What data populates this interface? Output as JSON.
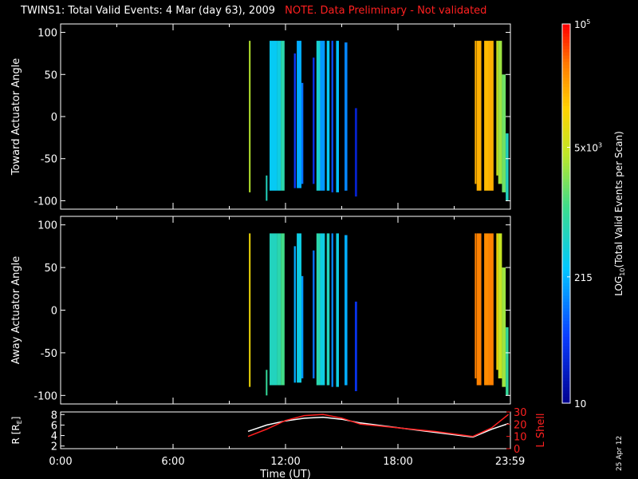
{
  "title": {
    "main": "TWINS1: Total Valid Events:  4 Mar (day  63), 2009",
    "note": "NOTE. Data Preliminary - Not validated"
  },
  "colors": {
    "background": "#000000",
    "axis": "#ffffff",
    "note": "#ff2020",
    "r_line": "#ffffff",
    "lshell_line": "#ff2020"
  },
  "chart_data": [
    {
      "type": "heatmap",
      "panel": "top",
      "ylabel": "Toward Actuator Angle",
      "ylim": [
        -110,
        110
      ],
      "yticks": [
        100,
        50,
        0,
        -50,
        -100
      ],
      "xlim_hours": [
        0,
        24
      ],
      "xticks_hours": [
        0,
        6,
        12,
        18,
        23.983
      ],
      "note": "vertical scan stripes; value = log10 total valid events per scan",
      "stripes": [
        {
          "t0": 10.05,
          "t1": 10.13,
          "ylo": -90,
          "yhi": 90,
          "log": 3.6
        },
        {
          "t0": 10.95,
          "t1": 11.0,
          "ylo": -100,
          "yhi": -70,
          "log": 2.8
        },
        {
          "t0": 11.15,
          "t1": 11.55,
          "ylo": -88,
          "yhi": 90,
          "log": 2.5
        },
        {
          "t0": 11.55,
          "t1": 11.75,
          "ylo": -88,
          "yhi": 90,
          "log": 2.6
        },
        {
          "t0": 11.75,
          "t1": 11.95,
          "ylo": -88,
          "yhi": 90,
          "log": 2.9
        },
        {
          "t0": 12.45,
          "t1": 12.55,
          "ylo": -85,
          "yhi": 75,
          "log": 1.7
        },
        {
          "t0": 12.6,
          "t1": 12.85,
          "ylo": -85,
          "yhi": 90,
          "log": 2.3
        },
        {
          "t0": 12.85,
          "t1": 12.95,
          "ylo": -80,
          "yhi": 40,
          "log": 2.0
        },
        {
          "t0": 13.45,
          "t1": 13.55,
          "ylo": -80,
          "yhi": 70,
          "log": 1.6
        },
        {
          "t0": 13.65,
          "t1": 13.85,
          "ylo": -88,
          "yhi": 90,
          "log": 2.7
        },
        {
          "t0": 13.85,
          "t1": 14.1,
          "ylo": -88,
          "yhi": 90,
          "log": 2.2
        },
        {
          "t0": 14.2,
          "t1": 14.35,
          "ylo": -88,
          "yhi": 90,
          "log": 2.5
        },
        {
          "t0": 14.45,
          "t1": 14.55,
          "ylo": -90,
          "yhi": 90,
          "log": 1.8
        },
        {
          "t0": 14.7,
          "t1": 14.85,
          "ylo": -90,
          "yhi": 90,
          "log": 2.4
        },
        {
          "t0": 15.15,
          "t1": 15.3,
          "ylo": -88,
          "yhi": 88,
          "log": 2.1
        },
        {
          "t0": 15.7,
          "t1": 15.82,
          "ylo": -95,
          "yhi": 10,
          "log": 1.4
        },
        {
          "t0": 22.1,
          "t1": 22.15,
          "ylo": -80,
          "yhi": 90,
          "log": 4.3
        },
        {
          "t0": 22.2,
          "t1": 22.45,
          "ylo": -88,
          "yhi": 90,
          "log": 4.3
        },
        {
          "t0": 22.6,
          "t1": 22.85,
          "ylo": -88,
          "yhi": 90,
          "log": 4.25
        },
        {
          "t0": 22.85,
          "t1": 23.1,
          "ylo": -88,
          "yhi": 90,
          "log": 4.3
        },
        {
          "t0": 23.25,
          "t1": 23.35,
          "ylo": -70,
          "yhi": 90,
          "log": 3.7
        },
        {
          "t0": 23.35,
          "t1": 23.55,
          "ylo": -80,
          "yhi": 90,
          "log": 3.5
        },
        {
          "t0": 23.55,
          "t1": 23.75,
          "ylo": -90,
          "yhi": 50,
          "log": 3.3
        },
        {
          "t0": 23.75,
          "t1": 23.9,
          "ylo": -100,
          "yhi": -20,
          "log": 2.8
        }
      ]
    },
    {
      "type": "heatmap",
      "panel": "middle",
      "ylabel": "Away Actuator Angle",
      "ylim": [
        -110,
        110
      ],
      "yticks": [
        100,
        50,
        0,
        -50,
        -100
      ],
      "xlim_hours": [
        0,
        24
      ],
      "stripes": [
        {
          "t0": 10.05,
          "t1": 10.13,
          "ylo": -90,
          "yhi": 90,
          "log": 4.0
        },
        {
          "t0": 10.95,
          "t1": 11.0,
          "ylo": -100,
          "yhi": -70,
          "log": 3.0
        },
        {
          "t0": 11.15,
          "t1": 11.55,
          "ylo": -88,
          "yhi": 90,
          "log": 2.8
        },
        {
          "t0": 11.55,
          "t1": 11.75,
          "ylo": -88,
          "yhi": 90,
          "log": 2.9
        },
        {
          "t0": 11.75,
          "t1": 11.95,
          "ylo": -88,
          "yhi": 90,
          "log": 3.1
        },
        {
          "t0": 12.45,
          "t1": 12.55,
          "ylo": -85,
          "yhi": 75,
          "log": 2.3
        },
        {
          "t0": 12.6,
          "t1": 12.85,
          "ylo": -85,
          "yhi": 90,
          "log": 2.6
        },
        {
          "t0": 12.85,
          "t1": 12.95,
          "ylo": -80,
          "yhi": 40,
          "log": 2.2
        },
        {
          "t0": 13.45,
          "t1": 13.55,
          "ylo": -80,
          "yhi": 70,
          "log": 2.0
        },
        {
          "t0": 13.65,
          "t1": 13.85,
          "ylo": -88,
          "yhi": 90,
          "log": 2.9
        },
        {
          "t0": 13.85,
          "t1": 14.1,
          "ylo": -88,
          "yhi": 90,
          "log": 2.6
        },
        {
          "t0": 14.2,
          "t1": 14.35,
          "ylo": -88,
          "yhi": 90,
          "log": 2.8
        },
        {
          "t0": 14.45,
          "t1": 14.55,
          "ylo": -90,
          "yhi": 90,
          "log": 2.1
        },
        {
          "t0": 14.7,
          "t1": 14.85,
          "ylo": -90,
          "yhi": 90,
          "log": 2.6
        },
        {
          "t0": 15.15,
          "t1": 15.3,
          "ylo": -88,
          "yhi": 88,
          "log": 2.3
        },
        {
          "t0": 15.7,
          "t1": 15.82,
          "ylo": -95,
          "yhi": 10,
          "log": 1.6
        },
        {
          "t0": 22.1,
          "t1": 22.15,
          "ylo": -80,
          "yhi": 90,
          "log": 4.55
        },
        {
          "t0": 22.2,
          "t1": 22.45,
          "ylo": -88,
          "yhi": 90,
          "log": 4.55
        },
        {
          "t0": 22.6,
          "t1": 22.85,
          "ylo": -88,
          "yhi": 90,
          "log": 4.5
        },
        {
          "t0": 22.85,
          "t1": 23.1,
          "ylo": -88,
          "yhi": 90,
          "log": 4.55
        },
        {
          "t0": 23.25,
          "t1": 23.35,
          "ylo": -70,
          "yhi": 90,
          "log": 4.0
        },
        {
          "t0": 23.35,
          "t1": 23.55,
          "ylo": -80,
          "yhi": 90,
          "log": 3.7
        },
        {
          "t0": 23.55,
          "t1": 23.75,
          "ylo": -90,
          "yhi": 50,
          "log": 3.5
        },
        {
          "t0": 23.75,
          "t1": 23.9,
          "ylo": -100,
          "yhi": -20,
          "log": 3.0
        }
      ]
    },
    {
      "type": "line",
      "panel": "bottom",
      "ylabel_left": "R [RE]",
      "ylabel_right": "L Shell",
      "ylim_left": [
        1.5,
        8.5
      ],
      "yticks_left": [
        2,
        4,
        6,
        8
      ],
      "ylim_right": [
        0,
        30
      ],
      "yticks_right": [
        0,
        10,
        20,
        30
      ],
      "xlabel": "Time (UT)",
      "series": [
        {
          "axis": "left",
          "color": "#ffffff",
          "x": [
            10.0,
            11.0,
            12.0,
            13.0,
            14.0,
            15.0,
            16.0,
            18.0,
            20.0,
            22.0,
            23.0,
            23.9
          ],
          "values": [
            4.8,
            6.0,
            6.8,
            7.3,
            7.5,
            7.1,
            6.4,
            5.5,
            4.6,
            3.7,
            5.2,
            6.3
          ]
        },
        {
          "axis": "right",
          "color": "#ff2020",
          "x": [
            10.0,
            11.0,
            12.0,
            13.0,
            14.0,
            15.0,
            16.0,
            18.0,
            20.0,
            22.0,
            23.0,
            23.9
          ],
          "values": [
            10,
            16,
            23,
            27,
            28,
            25,
            20,
            17,
            14,
            10,
            17,
            28
          ]
        }
      ],
      "xtick_labels": [
        "0:00",
        "6:00",
        "12:00",
        "18:00",
        "23:59"
      ]
    }
  ],
  "colorbar": {
    "label_main": "LOG",
    "label_sub": "10",
    "label_rest": "(Total Valid Events per Scan)",
    "log_range": [
      1,
      5
    ],
    "ticks": [
      {
        "log": 5,
        "text": "10",
        "sup": "5"
      },
      {
        "log": 3.699,
        "text": "5x10",
        "sup": "3"
      },
      {
        "log": 2.332,
        "text": "215"
      },
      {
        "log": 1,
        "text": "10"
      }
    ]
  },
  "axes": {
    "top_ylabel": "Toward Actuator Angle",
    "mid_ylabel": "Away Actuator Angle",
    "bot_ylabel_left": "R [R",
    "bot_ylabel_left_sub": "E",
    "bot_ylabel_left_end": "]",
    "bot_ylabel_right": "L Shell",
    "xlabel": "Time (UT)",
    "xtick_labels": [
      "0:00",
      "6:00",
      "12:00",
      "18:00",
      "23:59"
    ]
  },
  "datestamp": "25 Apr 12"
}
